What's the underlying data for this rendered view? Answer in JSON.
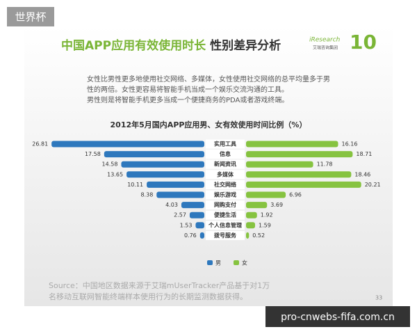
{
  "header": {
    "tag": "世界杯",
    "title_highlight": "中国APP应用有效使用时长",
    "title_rest": "性别差异分析",
    "logo_brand": "iResearch",
    "logo_sub": "艾瑞咨询集团",
    "logo_number": "10"
  },
  "summary": [
    "女性比男性更多地使用社交网络、多媒体，女性使用社交网络的总平均量多于男",
    "性的两倍。女性更容易将智能手机当成一个娱乐交流沟通的工具。",
    "男性则是将智能手机更多当成一个便捷商务的PDA或者游戏终端。"
  ],
  "chart_data": {
    "type": "bar",
    "title": "2012年5月国内APP应用男、女有效使用时间比例（%）",
    "categories": [
      "实用工具",
      "信息",
      "新闻资讯",
      "多媒体",
      "社交网络",
      "娱乐游戏",
      "网购支付",
      "便捷生活",
      "个人信息管理",
      "拨号服务"
    ],
    "series": [
      {
        "name": "男",
        "color": "#2e78bd",
        "values": [
          26.81,
          17.58,
          14.58,
          13.65,
          10.11,
          8.38,
          4.03,
          2.57,
          1.53,
          0.76
        ]
      },
      {
        "name": "女",
        "color": "#86c340",
        "values": [
          16.16,
          18.71,
          11.78,
          18.46,
          20.21,
          6.96,
          3.69,
          1.92,
          1.59,
          0.52
        ]
      }
    ]
  },
  "footer": {
    "source": [
      "Source：中国地区数据来源于艾瑞mUserTracker产品基于对1万",
      "名移动互联网智能终端样本使用行为的长期监测数据获得。"
    ],
    "page": "33",
    "watermark": "pro-cnwebs-fifa.com.cn"
  }
}
